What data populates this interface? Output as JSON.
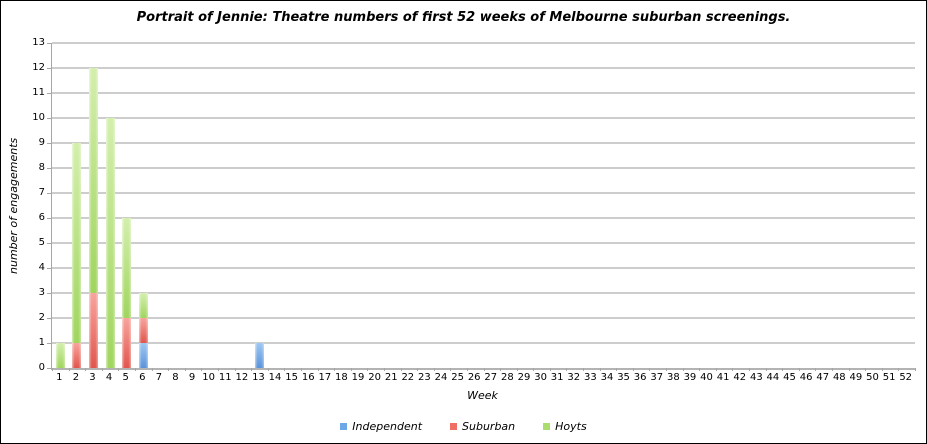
{
  "window": {
    "background": "#ffffff",
    "border_color": "#000000",
    "gridline_color": "#cdcdcd",
    "axis_color": "#a6a6a6"
  },
  "chart_data": {
    "type": "bar",
    "stacked": true,
    "grid": true,
    "legend_position": "bottom",
    "title": "Portrait of Jennie: Theatre numbers of first 52 weeks of Melbourne suburban screenings.",
    "xlabel": "Week",
    "ylabel": "number of engagements",
    "ylim": [
      0,
      13
    ],
    "y_ticks": [
      0,
      1,
      2,
      3,
      4,
      5,
      6,
      7,
      8,
      9,
      10,
      11,
      12,
      13
    ],
    "categories": [
      "1",
      "2",
      "3",
      "4",
      "5",
      "6",
      "7",
      "8",
      "9",
      "10",
      "11",
      "12",
      "13",
      "14",
      "15",
      "16",
      "17",
      "18",
      "19",
      "20",
      "21",
      "22",
      "23",
      "24",
      "25",
      "26",
      "27",
      "28",
      "29",
      "30",
      "31",
      "32",
      "33",
      "34",
      "35",
      "36",
      "37",
      "38",
      "39",
      "40",
      "41",
      "42",
      "43",
      "44",
      "45",
      "46",
      "47",
      "48",
      "49",
      "50",
      "51",
      "52"
    ],
    "series": [
      {
        "name": "Independent",
        "color": "#6ea7e7",
        "color_light": "#9ec7f2",
        "color_dark": "#5a93da",
        "values": [
          0,
          0,
          0,
          0,
          0,
          1,
          0,
          0,
          0,
          0,
          0,
          0,
          1,
          0,
          0,
          0,
          0,
          0,
          0,
          0,
          0,
          0,
          0,
          0,
          0,
          0,
          0,
          0,
          0,
          0,
          0,
          0,
          0,
          0,
          0,
          0,
          0,
          0,
          0,
          0,
          0,
          0,
          0,
          0,
          0,
          0,
          0,
          0,
          0,
          0,
          0,
          0
        ]
      },
      {
        "name": "Suburban",
        "color": "#ef6f67",
        "color_light": "#f8a49e",
        "color_dark": "#e0564d",
        "values": [
          0,
          1,
          3,
          0,
          2,
          1,
          0,
          0,
          0,
          0,
          0,
          0,
          0,
          0,
          0,
          0,
          0,
          0,
          0,
          0,
          0,
          0,
          0,
          0,
          0,
          0,
          0,
          0,
          0,
          0,
          0,
          0,
          0,
          0,
          0,
          0,
          0,
          0,
          0,
          0,
          0,
          0,
          0,
          0,
          0,
          0,
          0,
          0,
          0,
          0,
          0,
          0
        ]
      },
      {
        "name": "Hoyts",
        "color": "#abdc6f",
        "color_light": "#d4efad",
        "color_dark": "#a0d55f",
        "values": [
          1,
          8,
          9,
          10,
          4,
          1,
          0,
          0,
          0,
          0,
          0,
          0,
          0,
          0,
          0,
          0,
          0,
          0,
          0,
          0,
          0,
          0,
          0,
          0,
          0,
          0,
          0,
          0,
          0,
          0,
          0,
          0,
          0,
          0,
          0,
          0,
          0,
          0,
          0,
          0,
          0,
          0,
          0,
          0,
          0,
          0,
          0,
          0,
          0,
          0,
          0,
          0
        ]
      }
    ]
  }
}
